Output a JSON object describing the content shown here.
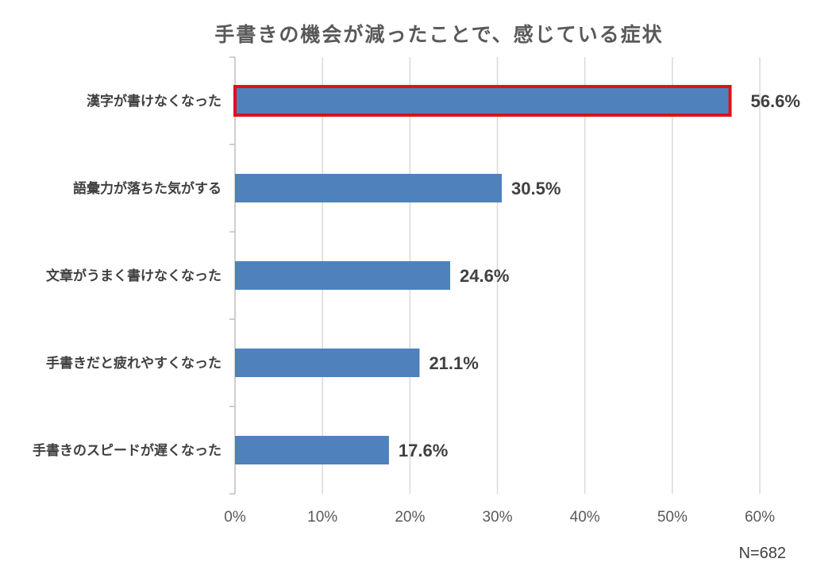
{
  "chart_data": {
    "type": "bar",
    "orientation": "horizontal",
    "title": "手書きの機会が減ったことで、感じている症状",
    "categories": [
      "漢字が書けなくなった",
      "語彙力が落ちた気がする",
      "文章がうまく書けなくなった",
      "手書きだと疲れやすくなった",
      "手書きのスピードが遅くなった"
    ],
    "values": [
      56.6,
      30.5,
      24.6,
      21.1,
      17.6
    ],
    "value_labels": [
      "56.6%",
      "30.5%",
      "24.6%",
      "21.1%",
      "17.6%"
    ],
    "xlim": [
      0,
      60
    ],
    "x_ticks": [
      "0%",
      "10%",
      "20%",
      "30%",
      "40%",
      "50%",
      "60%"
    ],
    "grid": "vertical",
    "bar_color": "#4f81bd",
    "highlight": {
      "index": 0,
      "outline_color": "#e0101a"
    },
    "note": "N=682"
  }
}
